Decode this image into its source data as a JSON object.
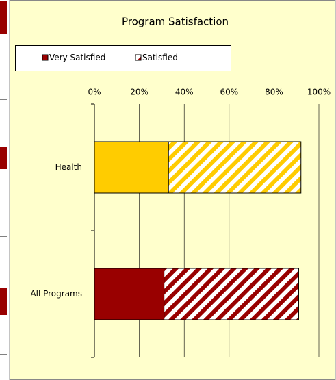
{
  "chart_data": {
    "type": "stacked_hbar",
    "title": "Program Satisfaction",
    "categories": [
      "Health",
      "All Programs"
    ],
    "series": [
      {
        "name": "Very Satisfied",
        "color": "#990000",
        "point_colors": [
          "#ffcc00",
          "#990000"
        ],
        "pattern": "solid",
        "values": [
          33,
          31
        ]
      },
      {
        "name": "Satisfied",
        "color": "#990000",
        "point_colors": [
          "#ffcc00",
          "#990000"
        ],
        "pattern": "hatch",
        "values": [
          59,
          60
        ]
      }
    ],
    "xlim": [
      0,
      100
    ],
    "xticks": [
      {
        "value": 0,
        "label": "0%"
      },
      {
        "value": 20,
        "label": "20%"
      },
      {
        "value": 40,
        "label": "40%"
      },
      {
        "value": 60,
        "label": "60%"
      },
      {
        "value": 80,
        "label": "80%"
      },
      {
        "value": 100,
        "label": "100%"
      }
    ],
    "grid": true
  }
}
